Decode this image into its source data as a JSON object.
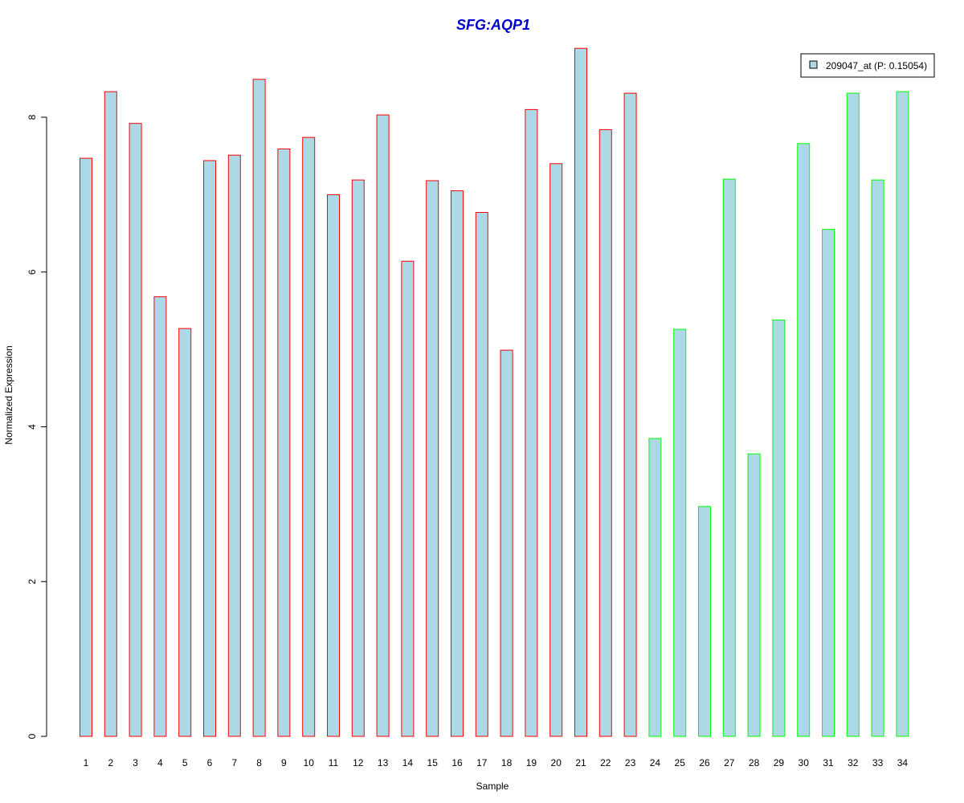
{
  "chart_data": {
    "type": "bar",
    "title": "SFG:AQP1",
    "xlabel": "Sample",
    "ylabel": "Normalized Expression",
    "ylim": [
      0,
      8.9
    ],
    "y_ticks": [
      "0",
      "2",
      "4",
      "6",
      "8"
    ],
    "grid": false,
    "legend_position": "top-right",
    "categories": [
      "1",
      "2",
      "3",
      "4",
      "5",
      "6",
      "7",
      "8",
      "9",
      "10",
      "11",
      "12",
      "13",
      "14",
      "15",
      "16",
      "17",
      "18",
      "19",
      "20",
      "21",
      "22",
      "23",
      "24",
      "25",
      "26",
      "27",
      "28",
      "29",
      "30",
      "31",
      "32",
      "33",
      "34"
    ],
    "series": [
      {
        "name": "209047_at (P: 0.15054)",
        "values": [
          7.47,
          8.33,
          7.92,
          5.68,
          5.27,
          7.44,
          7.51,
          8.49,
          7.59,
          7.74,
          7.0,
          7.19,
          8.03,
          6.14,
          7.18,
          7.05,
          6.77,
          4.99,
          8.1,
          7.4,
          8.89,
          7.84,
          8.31,
          3.85,
          5.26,
          2.97,
          7.2,
          3.65,
          5.38,
          7.66,
          6.55,
          8.31,
          7.19,
          8.33
        ]
      }
    ],
    "groups": [
      "red",
      "red",
      "red",
      "red",
      "red",
      "red",
      "red",
      "red",
      "red",
      "red",
      "red",
      "red",
      "red",
      "red",
      "red",
      "red",
      "red",
      "red",
      "red",
      "red",
      "red",
      "red",
      "red",
      "green",
      "green",
      "green",
      "green",
      "green",
      "green",
      "green",
      "green",
      "green",
      "green",
      "green"
    ]
  },
  "colors": {
    "bar_fill": "#add8e6",
    "group_red": "#ff0000",
    "group_green": "#00ff00",
    "title": "#0000cd",
    "axis": "#000000"
  }
}
